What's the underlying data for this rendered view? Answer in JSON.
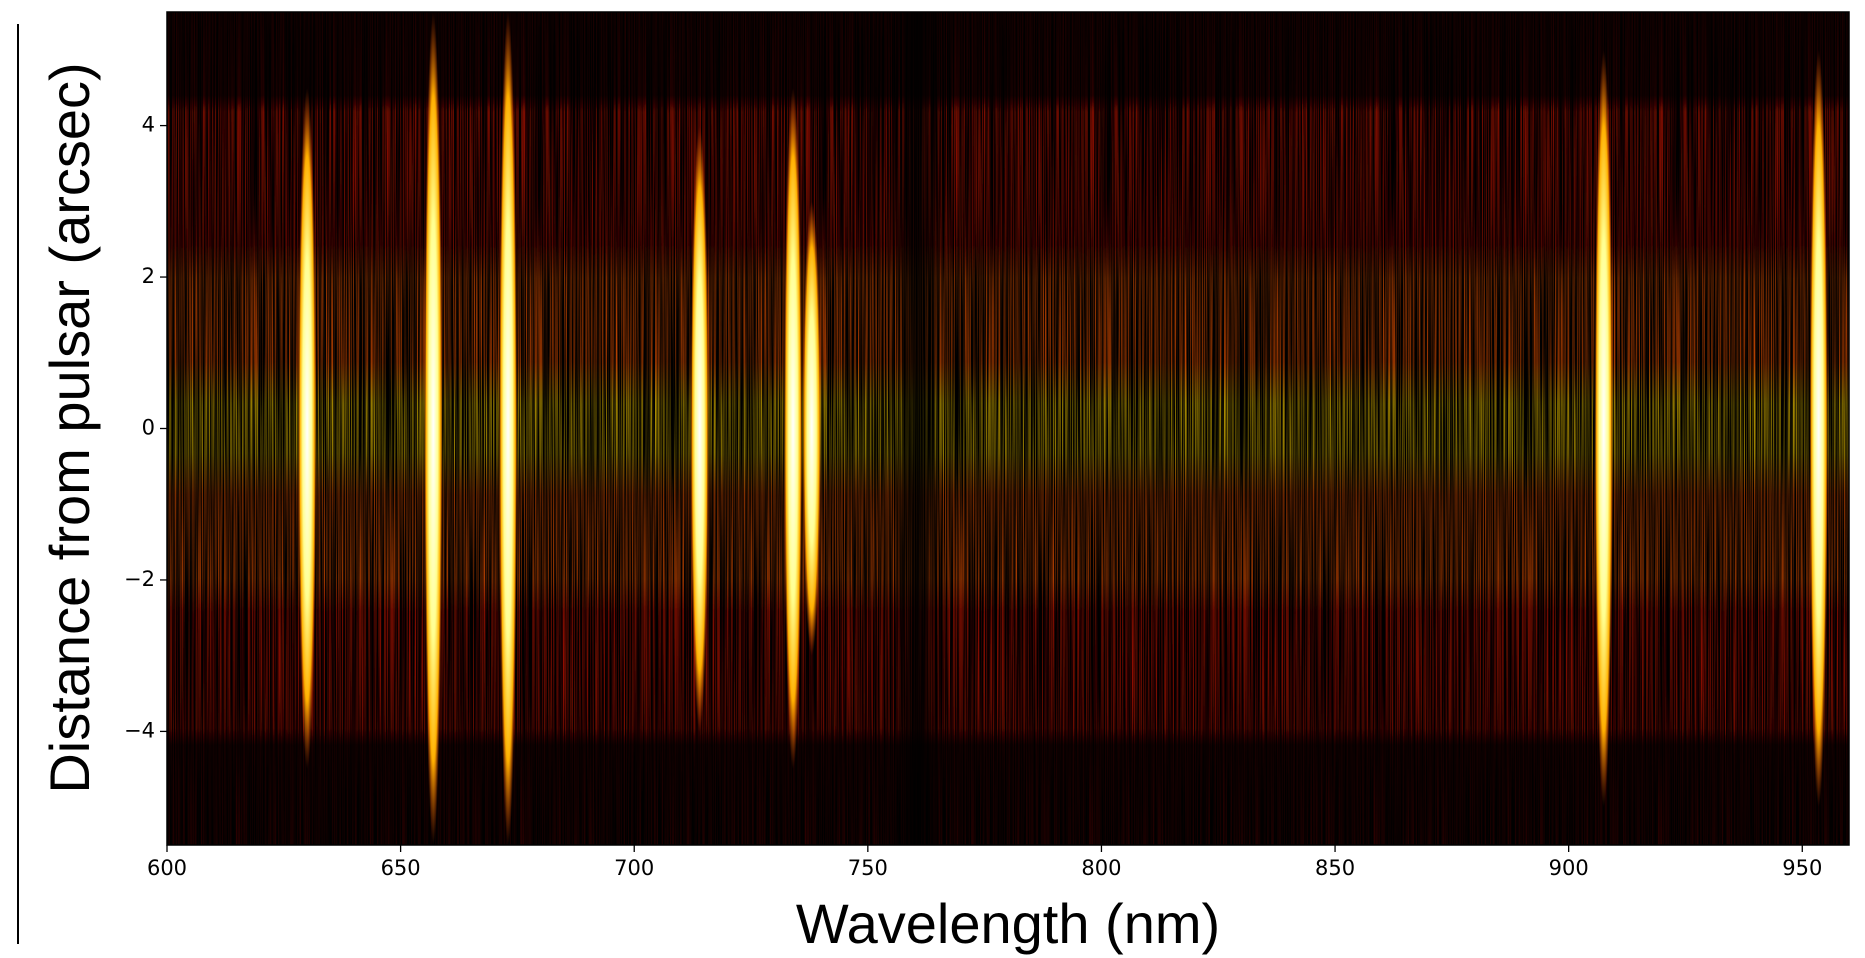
{
  "chart_data": {
    "type": "heatmap",
    "x_label": "Wavelength (nm)",
    "y_label": "Distance from pulsar (arcsec)",
    "x": [
      630,
      657,
      673,
      714,
      734,
      738,
      907.5,
      953.5
    ],
    "values": [
      4.5,
      5.5,
      5.5,
      4,
      4.5,
      3,
      5,
      5
    ],
    "xlim": [
      600,
      960
    ],
    "ylim": [
      -5.5,
      5.5
    ],
    "xticks": [
      600,
      650,
      700,
      750,
      800,
      850,
      900,
      950
    ],
    "yticks": [
      {
        "value": -4,
        "label": "−4"
      },
      {
        "value": -2,
        "label": "−2"
      },
      0,
      2,
      4
    ],
    "colormap": [
      "#000000",
      "#3a0000",
      "#c81400",
      "#ff5a00",
      "#ffd200",
      "#ffff90"
    ]
  }
}
